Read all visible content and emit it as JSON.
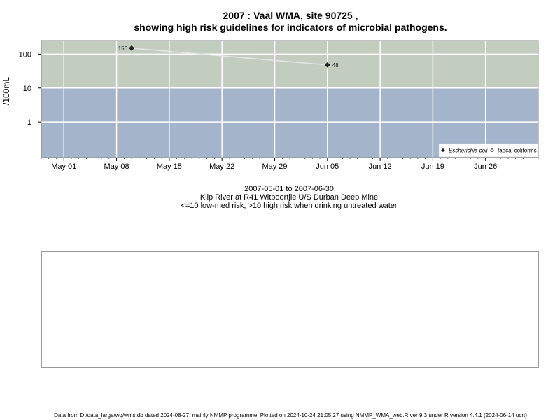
{
  "chart_data": {
    "type": "scatter",
    "title_line1": "2007 : Vaal WMA, site 90725 ,",
    "title_line2": "showing high risk guidelines for indicators of microbial pathogens.",
    "ylabel": "/100mL",
    "y_scale": "log",
    "y_ticks": [
      1,
      10,
      100
    ],
    "y_tick_labels": [
      "1",
      "10",
      "100"
    ],
    "x_ticks": [
      "2007-05-01",
      "2007-05-08",
      "2007-05-15",
      "2007-05-22",
      "2007-05-29",
      "2007-06-05",
      "2007-06-12",
      "2007-06-19",
      "2007-06-26"
    ],
    "x_tick_labels": [
      "May 01",
      "May 08",
      "May 15",
      "May 22",
      "May 29",
      "Jun 05",
      "Jun 12",
      "Jun 19",
      "Jun 26"
    ],
    "x_range": [
      "2007-04-28",
      "2007-07-03"
    ],
    "grid": true,
    "guideline": 10,
    "zones": {
      "high_risk_color": "#c2cdc0",
      "low_risk_color": "#a3b4cb"
    },
    "series": [
      {
        "name": "Escherichia coli",
        "marker": "filled-diamond",
        "color": "#222222",
        "points": [
          {
            "x": "2007-05-10",
            "y": 150,
            "label": "150"
          },
          {
            "x": "2007-06-05",
            "y": 48,
            "label": "48"
          }
        ]
      },
      {
        "name": "faecal coliforms",
        "marker": "open-diamond",
        "color": "#222222",
        "points": []
      }
    ],
    "legend_position": "bottom-right"
  },
  "caption": {
    "line1": "2007-05-01 to 2007-06-30",
    "line2": "Klip River at R41 Witpoortjie U/S Durban Deep Mine",
    "line3": "<=10 low-med risk; >10 high risk when drinking untreated water"
  },
  "footer": "Data from D:/data_large/wq/wms.db dated 2024-08-27, mainly NMMP programme. Plotted on 2024-10-24 21:05:27 using NMMP_WMA_web.R ver 9.3 under R version 4.4.1 (2024-06-14 ucrt)"
}
